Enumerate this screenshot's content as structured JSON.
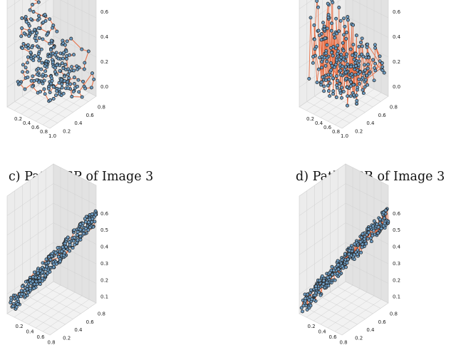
{
  "captions": [
    "c) Path TSP of Image 3",
    "d) Path RGB of Image 3"
  ],
  "colors": {
    "point_fill": "#6e9cc2",
    "point_stroke": "#1d1d1d",
    "path": "#e8724a",
    "pane_left": "#ececec",
    "pane_right": "#e2e2e2",
    "pane_floor": "#f2f2f2",
    "grid": "#d0d0d0"
  },
  "chart_data": [
    {
      "type": "scatter",
      "variant": "3d-scatter-with-path",
      "path_style": "locally-connected",
      "x_ticks": [
        "0.2",
        "0.4",
        "0.6",
        "0.8",
        "1.0"
      ],
      "y_ticks": [
        "0.2",
        "0.4",
        "0.6",
        "0.8"
      ],
      "z_ticks": [
        "0.0",
        "0.2",
        "0.4",
        "0.6"
      ],
      "xlim": [
        0.1,
        1.05
      ],
      "ylim": [
        0.05,
        0.9
      ],
      "zlim": [
        0.0,
        0.7
      ],
      "grid": true
    },
    {
      "type": "scatter",
      "variant": "3d-scatter-with-path",
      "path_style": "long-jumps",
      "x_ticks": [
        "0.2",
        "0.4",
        "0.6",
        "0.8",
        "1.0"
      ],
      "y_ticks": [
        "0.2",
        "0.4",
        "0.6",
        "0.8"
      ],
      "z_ticks": [
        "0.0",
        "0.2",
        "0.4",
        "0.6"
      ],
      "xlim": [
        0.1,
        1.05
      ],
      "ylim": [
        0.05,
        0.9
      ],
      "zlim": [
        0.0,
        0.7
      ],
      "grid": true
    },
    {
      "type": "scatter",
      "variant": "3d-scatter-with-path",
      "path_style": "locally-connected",
      "x_ticks": [
        "0.2",
        "0.4",
        "0.6",
        "0.8"
      ],
      "y_ticks": [
        "0.2",
        "0.4",
        "0.6",
        "0.8"
      ],
      "z_ticks": [
        "0.1",
        "0.2",
        "0.3",
        "0.4",
        "0.5",
        "0.6"
      ],
      "xlim": [
        0.05,
        0.85
      ],
      "ylim": [
        0.05,
        0.9
      ],
      "zlim": [
        0.0,
        0.65
      ],
      "grid": true
    },
    {
      "type": "scatter",
      "variant": "3d-scatter-with-path",
      "path_style": "long-jumps",
      "x_ticks": [
        "0.2",
        "0.4",
        "0.6",
        "0.8"
      ],
      "y_ticks": [
        "0.2",
        "0.4",
        "0.6",
        "0.8"
      ],
      "z_ticks": [
        "0.1",
        "0.2",
        "0.3",
        "0.4",
        "0.5",
        "0.6"
      ],
      "xlim": [
        0.05,
        0.85
      ],
      "ylim": [
        0.05,
        0.9
      ],
      "zlim": [
        0.0,
        0.65
      ],
      "grid": true
    }
  ]
}
